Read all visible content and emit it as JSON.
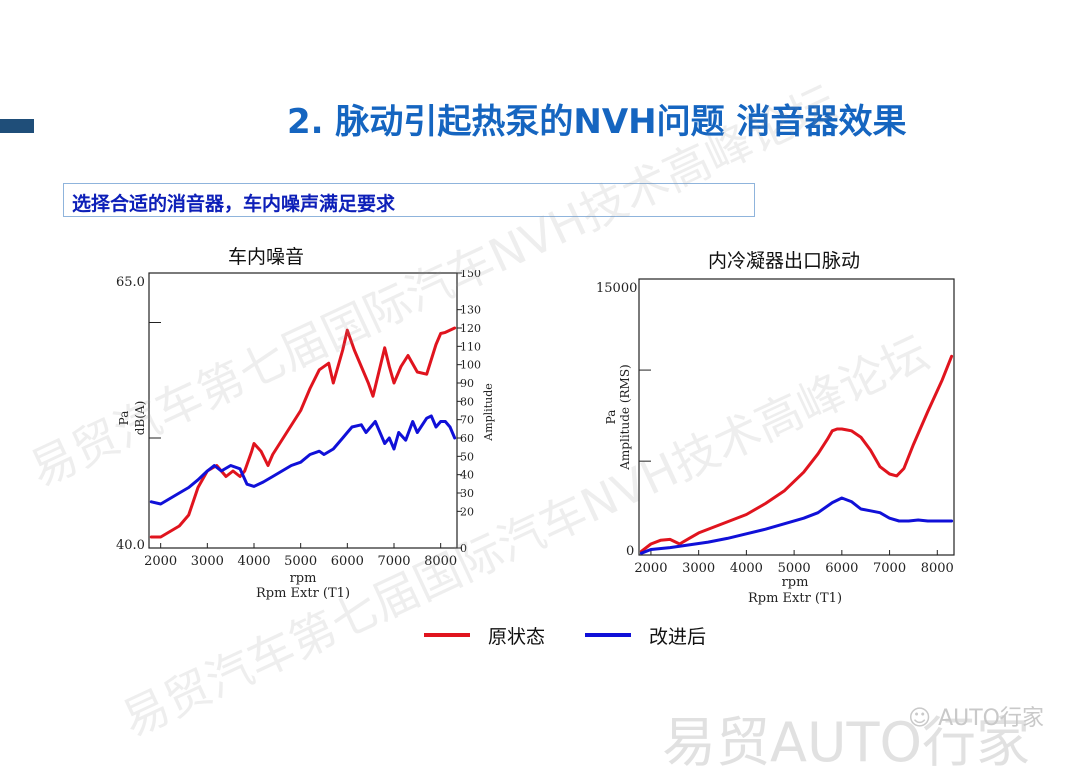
{
  "slide": {
    "title": "2. 脉动引起热泵的NVH问题  消音器效果",
    "subtitle": "选择合适的消音器，车内噪声满足要求"
  },
  "watermarks": {
    "diagonal": "易贸汽车第七届国际汽车NVH技术高峰论坛",
    "corner_small": "AUTO行家",
    "corner_big": "易贸AUTO行家"
  },
  "legend": {
    "items": [
      {
        "label": "原状态",
        "color": "#e0141e"
      },
      {
        "label": "改进后",
        "color": "#1010d8"
      }
    ]
  },
  "colors": {
    "title_blue": "#1565c0",
    "subtitle_blue": "#0d1fb8",
    "accent": "#1f4e79",
    "original": "#e0141e",
    "improved": "#1010d8"
  },
  "chart_data": [
    {
      "type": "line",
      "title": "车内噪音",
      "xlabel": "rpm",
      "xlabel2": "Rpm Extr (T1)",
      "ylabel_left_1": "Pa",
      "ylabel_left_2": "dB(A)",
      "ylabel_right": "Amplitude",
      "xlim": [
        1750,
        8350
      ],
      "ylim": [
        40,
        65
      ],
      "x_ticks": [
        "2000",
        "3000",
        "4000",
        "5000",
        "6000",
        "7000",
        "8000"
      ],
      "y_ticks_left": [
        "65.0",
        "40.0"
      ],
      "y_ticks_right": [
        "150",
        "130",
        "120",
        "110",
        "100",
        "90",
        "80",
        "70",
        "60",
        "50",
        "40",
        "30",
        "20",
        "0"
      ],
      "series": [
        {
          "name": "原状态",
          "x": [
            1800,
            2000,
            2200,
            2400,
            2600,
            2800,
            3000,
            3200,
            3400,
            3550,
            3700,
            3800,
            3950,
            4000,
            4150,
            4300,
            4400,
            4550,
            4700,
            5000,
            5200,
            5400,
            5600,
            5700,
            5900,
            6000,
            6150,
            6300,
            6450,
            6550,
            6800,
            6900,
            7000,
            7150,
            7300,
            7500,
            7700,
            7900,
            8000,
            8100,
            8300
          ],
          "y": [
            41.0,
            41.0,
            41.5,
            42.0,
            43.0,
            45.5,
            47.0,
            47.5,
            46.5,
            47.0,
            46.5,
            47.0,
            48.8,
            49.5,
            48.8,
            47.5,
            48.5,
            49.5,
            50.5,
            52.5,
            54.5,
            56.2,
            56.8,
            55.0,
            58.0,
            59.8,
            58.0,
            56.5,
            55.0,
            53.8,
            58.2,
            56.5,
            55.0,
            56.5,
            57.5,
            56.0,
            55.8,
            58.5,
            59.5,
            59.6,
            60.0
          ]
        },
        {
          "name": "改进后",
          "x": [
            1800,
            2000,
            2200,
            2400,
            2600,
            2800,
            3000,
            3150,
            3300,
            3500,
            3700,
            3850,
            4000,
            4200,
            4400,
            4600,
            4800,
            5000,
            5200,
            5400,
            5500,
            5700,
            5900,
            6000,
            6100,
            6300,
            6400,
            6600,
            6800,
            6900,
            7000,
            7100,
            7250,
            7400,
            7500,
            7700,
            7800,
            7900,
            8000,
            8100,
            8200,
            8300
          ],
          "y": [
            44.2,
            44.0,
            44.5,
            45.0,
            45.5,
            46.2,
            47.0,
            47.5,
            47.0,
            47.5,
            47.2,
            45.8,
            45.6,
            46.0,
            46.5,
            47.0,
            47.5,
            47.8,
            48.5,
            48.8,
            48.5,
            49.0,
            50.0,
            50.5,
            51.0,
            51.2,
            50.5,
            51.5,
            49.5,
            50.0,
            49.0,
            50.5,
            49.8,
            51.5,
            50.5,
            51.8,
            52.0,
            51.0,
            51.5,
            51.5,
            51.0,
            50.0
          ]
        }
      ]
    },
    {
      "type": "line",
      "title": "内冷凝器出口脉动",
      "xlabel": "rpm",
      "xlabel2": "Rpm Extr (T1)",
      "ylabel_left_1": "Pa",
      "ylabel_left_2": "Amplitude (RMS)",
      "xlim": [
        1750,
        8350
      ],
      "ylim": [
        0,
        15000
      ],
      "x_ticks": [
        "2000",
        "3000",
        "4000",
        "5000",
        "6000",
        "7000",
        "8000"
      ],
      "y_ticks_left": [
        "15000",
        "0"
      ],
      "series": [
        {
          "name": "原状态",
          "x": [
            1800,
            2000,
            2200,
            2400,
            2600,
            2800,
            3000,
            3300,
            3600,
            4000,
            4400,
            4800,
            5200,
            5500,
            5700,
            5800,
            5900,
            6000,
            6100,
            6200,
            6400,
            6600,
            6800,
            7000,
            7150,
            7300,
            7500,
            7800,
            8100,
            8300
          ],
          "y": [
            200,
            600,
            800,
            850,
            600,
            900,
            1200,
            1500,
            1800,
            2200,
            2800,
            3500,
            4500,
            5500,
            6300,
            6750,
            6850,
            6850,
            6800,
            6750,
            6400,
            5700,
            4800,
            4400,
            4300,
            4700,
            6000,
            7800,
            9500,
            10800
          ]
        },
        {
          "name": "改进后",
          "x": [
            1800,
            2000,
            2400,
            2800,
            3200,
            3600,
            4000,
            4400,
            4800,
            5200,
            5500,
            5800,
            6000,
            6200,
            6400,
            6600,
            6800,
            7000,
            7200,
            7400,
            7600,
            7800,
            8000,
            8300
          ],
          "y": [
            100,
            300,
            400,
            550,
            700,
            900,
            1150,
            1400,
            1700,
            2000,
            2300,
            2850,
            3100,
            2900,
            2500,
            2400,
            2300,
            2000,
            1850,
            1850,
            1900,
            1850,
            1850,
            1850
          ]
        }
      ]
    }
  ]
}
